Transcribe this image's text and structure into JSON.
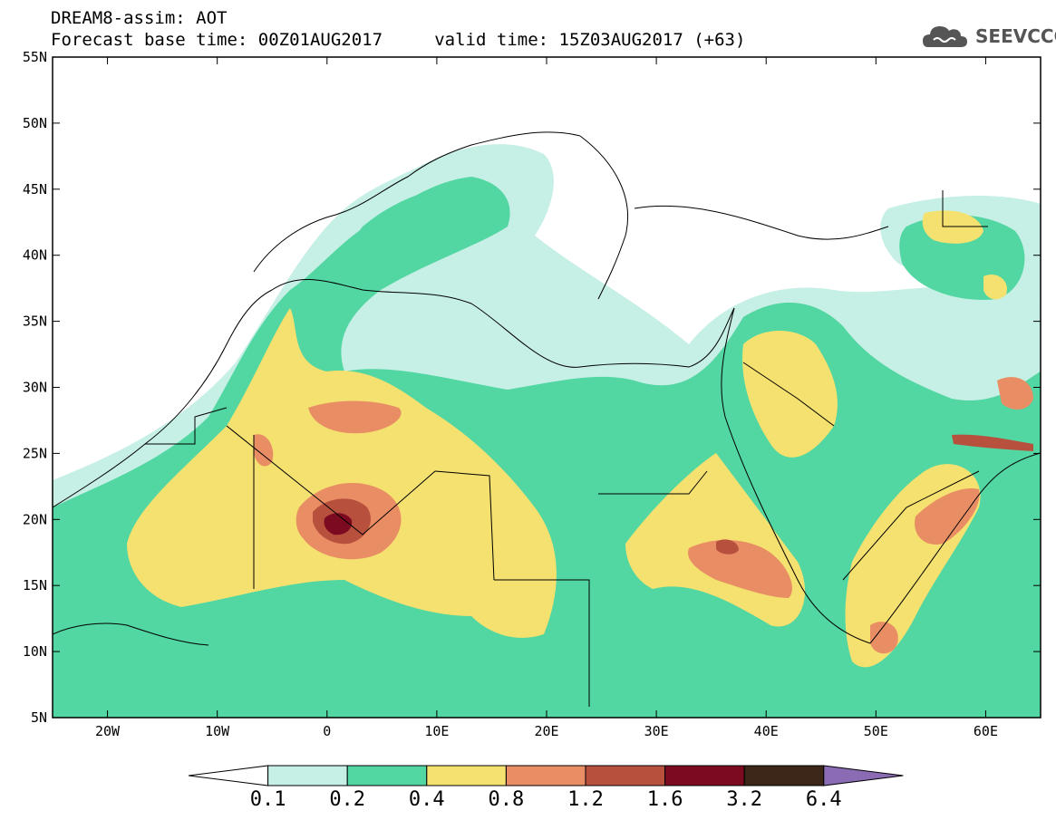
{
  "header": {
    "line1": "DREAM8-assim: AOT",
    "line2": "Forecast base time: 00Z01AUG2017     valid time: 15Z03AUG2017 (+63)"
  },
  "brand": {
    "name": "SEEVCCC",
    "icon": "cloud-logo-icon"
  },
  "map": {
    "projection": "lat-lon",
    "lon_range": [
      -25,
      65
    ],
    "lat_range": [
      5,
      55
    ],
    "lat_ticks": [
      "55N",
      "50N",
      "45N",
      "40N",
      "35N",
      "30N",
      "25N",
      "20N",
      "15N",
      "10N",
      "5N"
    ],
    "lon_ticks": [
      "20W",
      "10W",
      "0",
      "10E",
      "20E",
      "30E",
      "40E",
      "50E",
      "60E"
    ]
  },
  "legend": {
    "colors": [
      "#ffffff",
      "#c6efe6",
      "#52d6a2",
      "#f4e170",
      "#e98e64",
      "#b8503e",
      "#7c0b22",
      "#3c2718",
      "#8a6bb4"
    ],
    "labels": [
      "0.1",
      "0.2",
      "0.4",
      "0.8",
      "1.2",
      "1.6",
      "3.2",
      "6.4"
    ]
  }
}
